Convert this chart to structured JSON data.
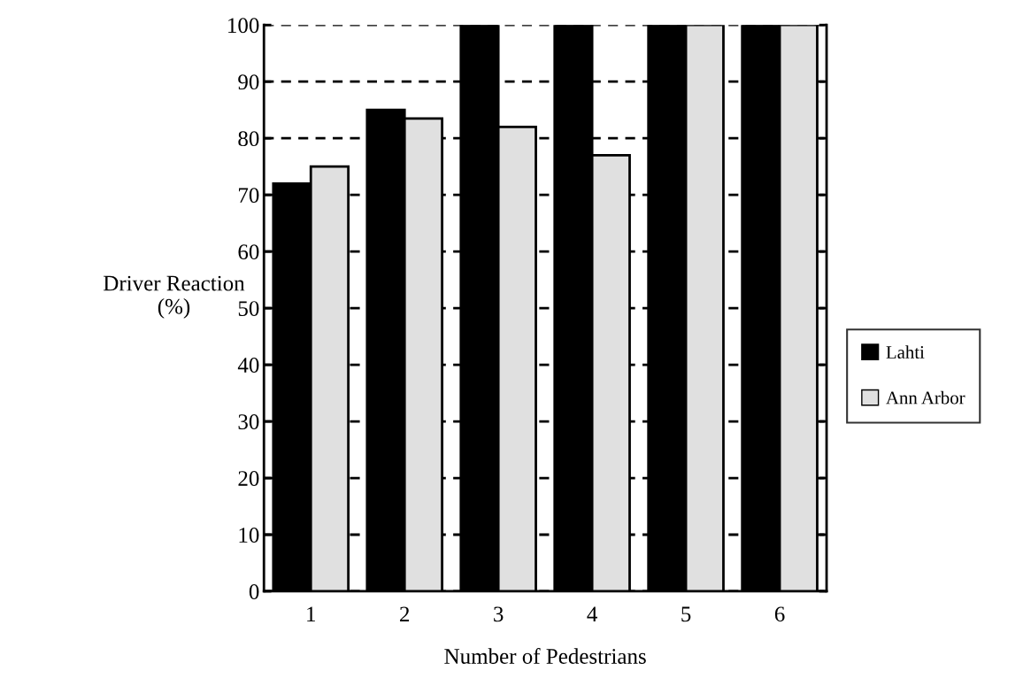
{
  "chart_data": {
    "type": "bar",
    "xlabel": "Number of Pedestrians",
    "ylabel": "Driver Reaction\n(%)",
    "categories": [
      "1",
      "2",
      "3",
      "4",
      "5",
      "6"
    ],
    "series": [
      {
        "name": "Lahti",
        "color": "#000000",
        "values": [
          72,
          85,
          100,
          100,
          100,
          100
        ]
      },
      {
        "name": "Ann Arbor",
        "color": "#e0e0e0",
        "values": [
          75,
          83.5,
          82,
          77,
          100,
          100
        ]
      }
    ],
    "ylim": [
      0,
      100
    ],
    "yticks": [
      0,
      10,
      20,
      30,
      40,
      50,
      60,
      70,
      80,
      90,
      100
    ],
    "grid": "y",
    "legend": "right"
  }
}
